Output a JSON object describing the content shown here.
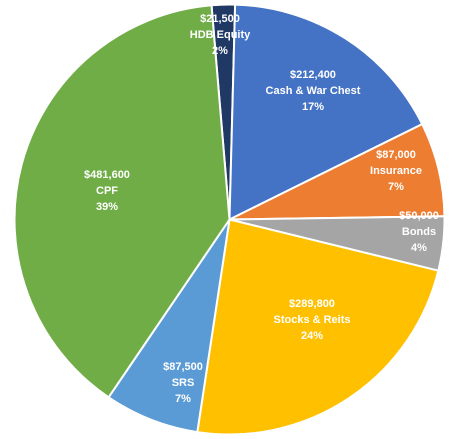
{
  "chart_data": {
    "type": "pie",
    "slices": [
      {
        "label": "HDB Equity",
        "amount": "$21,500",
        "value": 21500,
        "percent": "2%",
        "color": "#203864"
      },
      {
        "label": "Cash & War Chest",
        "amount": "$212,400",
        "value": 212400,
        "percent": "17%",
        "color": "#4472C4"
      },
      {
        "label": "Insurance",
        "amount": "$87,000",
        "value": 87000,
        "percent": "7%",
        "color": "#ED7D31"
      },
      {
        "label": "Bonds",
        "amount": "$50,000",
        "value": 50000,
        "percent": "4%",
        "color": "#A5A5A5"
      },
      {
        "label": "Stocks & Reits",
        "amount": "$289,800",
        "value": 289800,
        "percent": "24%",
        "color": "#FFC000"
      },
      {
        "label": "SRS",
        "amount": "$87,500",
        "value": 87500,
        "percent": "7%",
        "color": "#5B9BD5"
      },
      {
        "label": "CPF",
        "amount": "$481,600",
        "value": 481600,
        "percent": "39%",
        "color": "#70AD47"
      }
    ],
    "start_angle_deg": -4.8,
    "direction": "clockwise"
  }
}
